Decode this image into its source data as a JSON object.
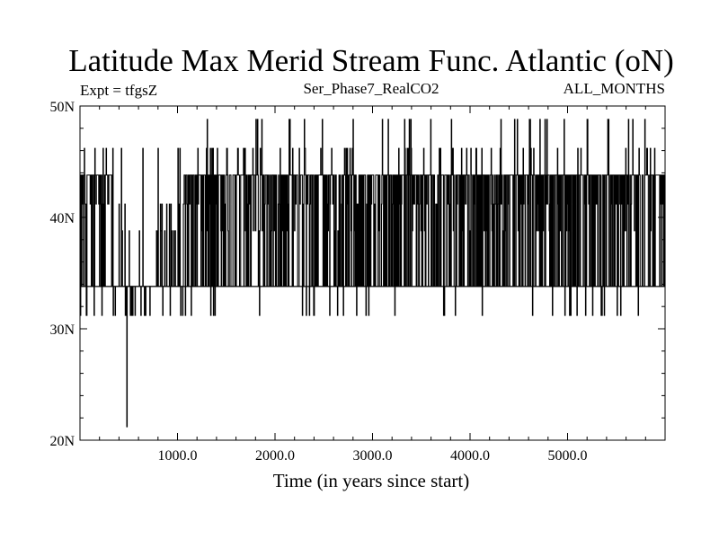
{
  "chart_data": {
    "type": "line",
    "title": "Latitude Max Merid Stream Func. Atlantic (oN)",
    "subtitle_left": "Expt = tfgsZ",
    "subtitle_center": "Ser_Phase7_RealCO2",
    "subtitle_right": "ALL_MONTHS",
    "xlabel": "Time (in years since start)",
    "ylabel": "",
    "xlim": [
      0,
      6000
    ],
    "ylim": [
      20,
      50
    ],
    "x_ticks": [
      1000,
      2000,
      3000,
      4000,
      5000
    ],
    "x_tick_labels": [
      "1000.0",
      "2000.0",
      "3000.0",
      "4000.0",
      "5000.0"
    ],
    "y_ticks": [
      20,
      30,
      40,
      50
    ],
    "y_tick_labels": [
      "20N",
      "30N",
      "40N",
      "50N"
    ],
    "levels": [
      21.2,
      31.2,
      33.8,
      36.2,
      38.8,
      41.2,
      43.8,
      46.2,
      48.8
    ],
    "baseline": 33.8,
    "series": [
      {
        "name": "Latitude of max meridional stream function",
        "x": [
          0,
          480,
          481,
          482,
          1150,
          1151,
          5960,
          5961,
          6000
        ],
        "y": [
          33.8,
          33.8,
          21.2,
          33.8,
          33.8,
          43.8,
          43.8,
          46.2,
          33.8
        ]
      }
    ],
    "grid": false
  }
}
